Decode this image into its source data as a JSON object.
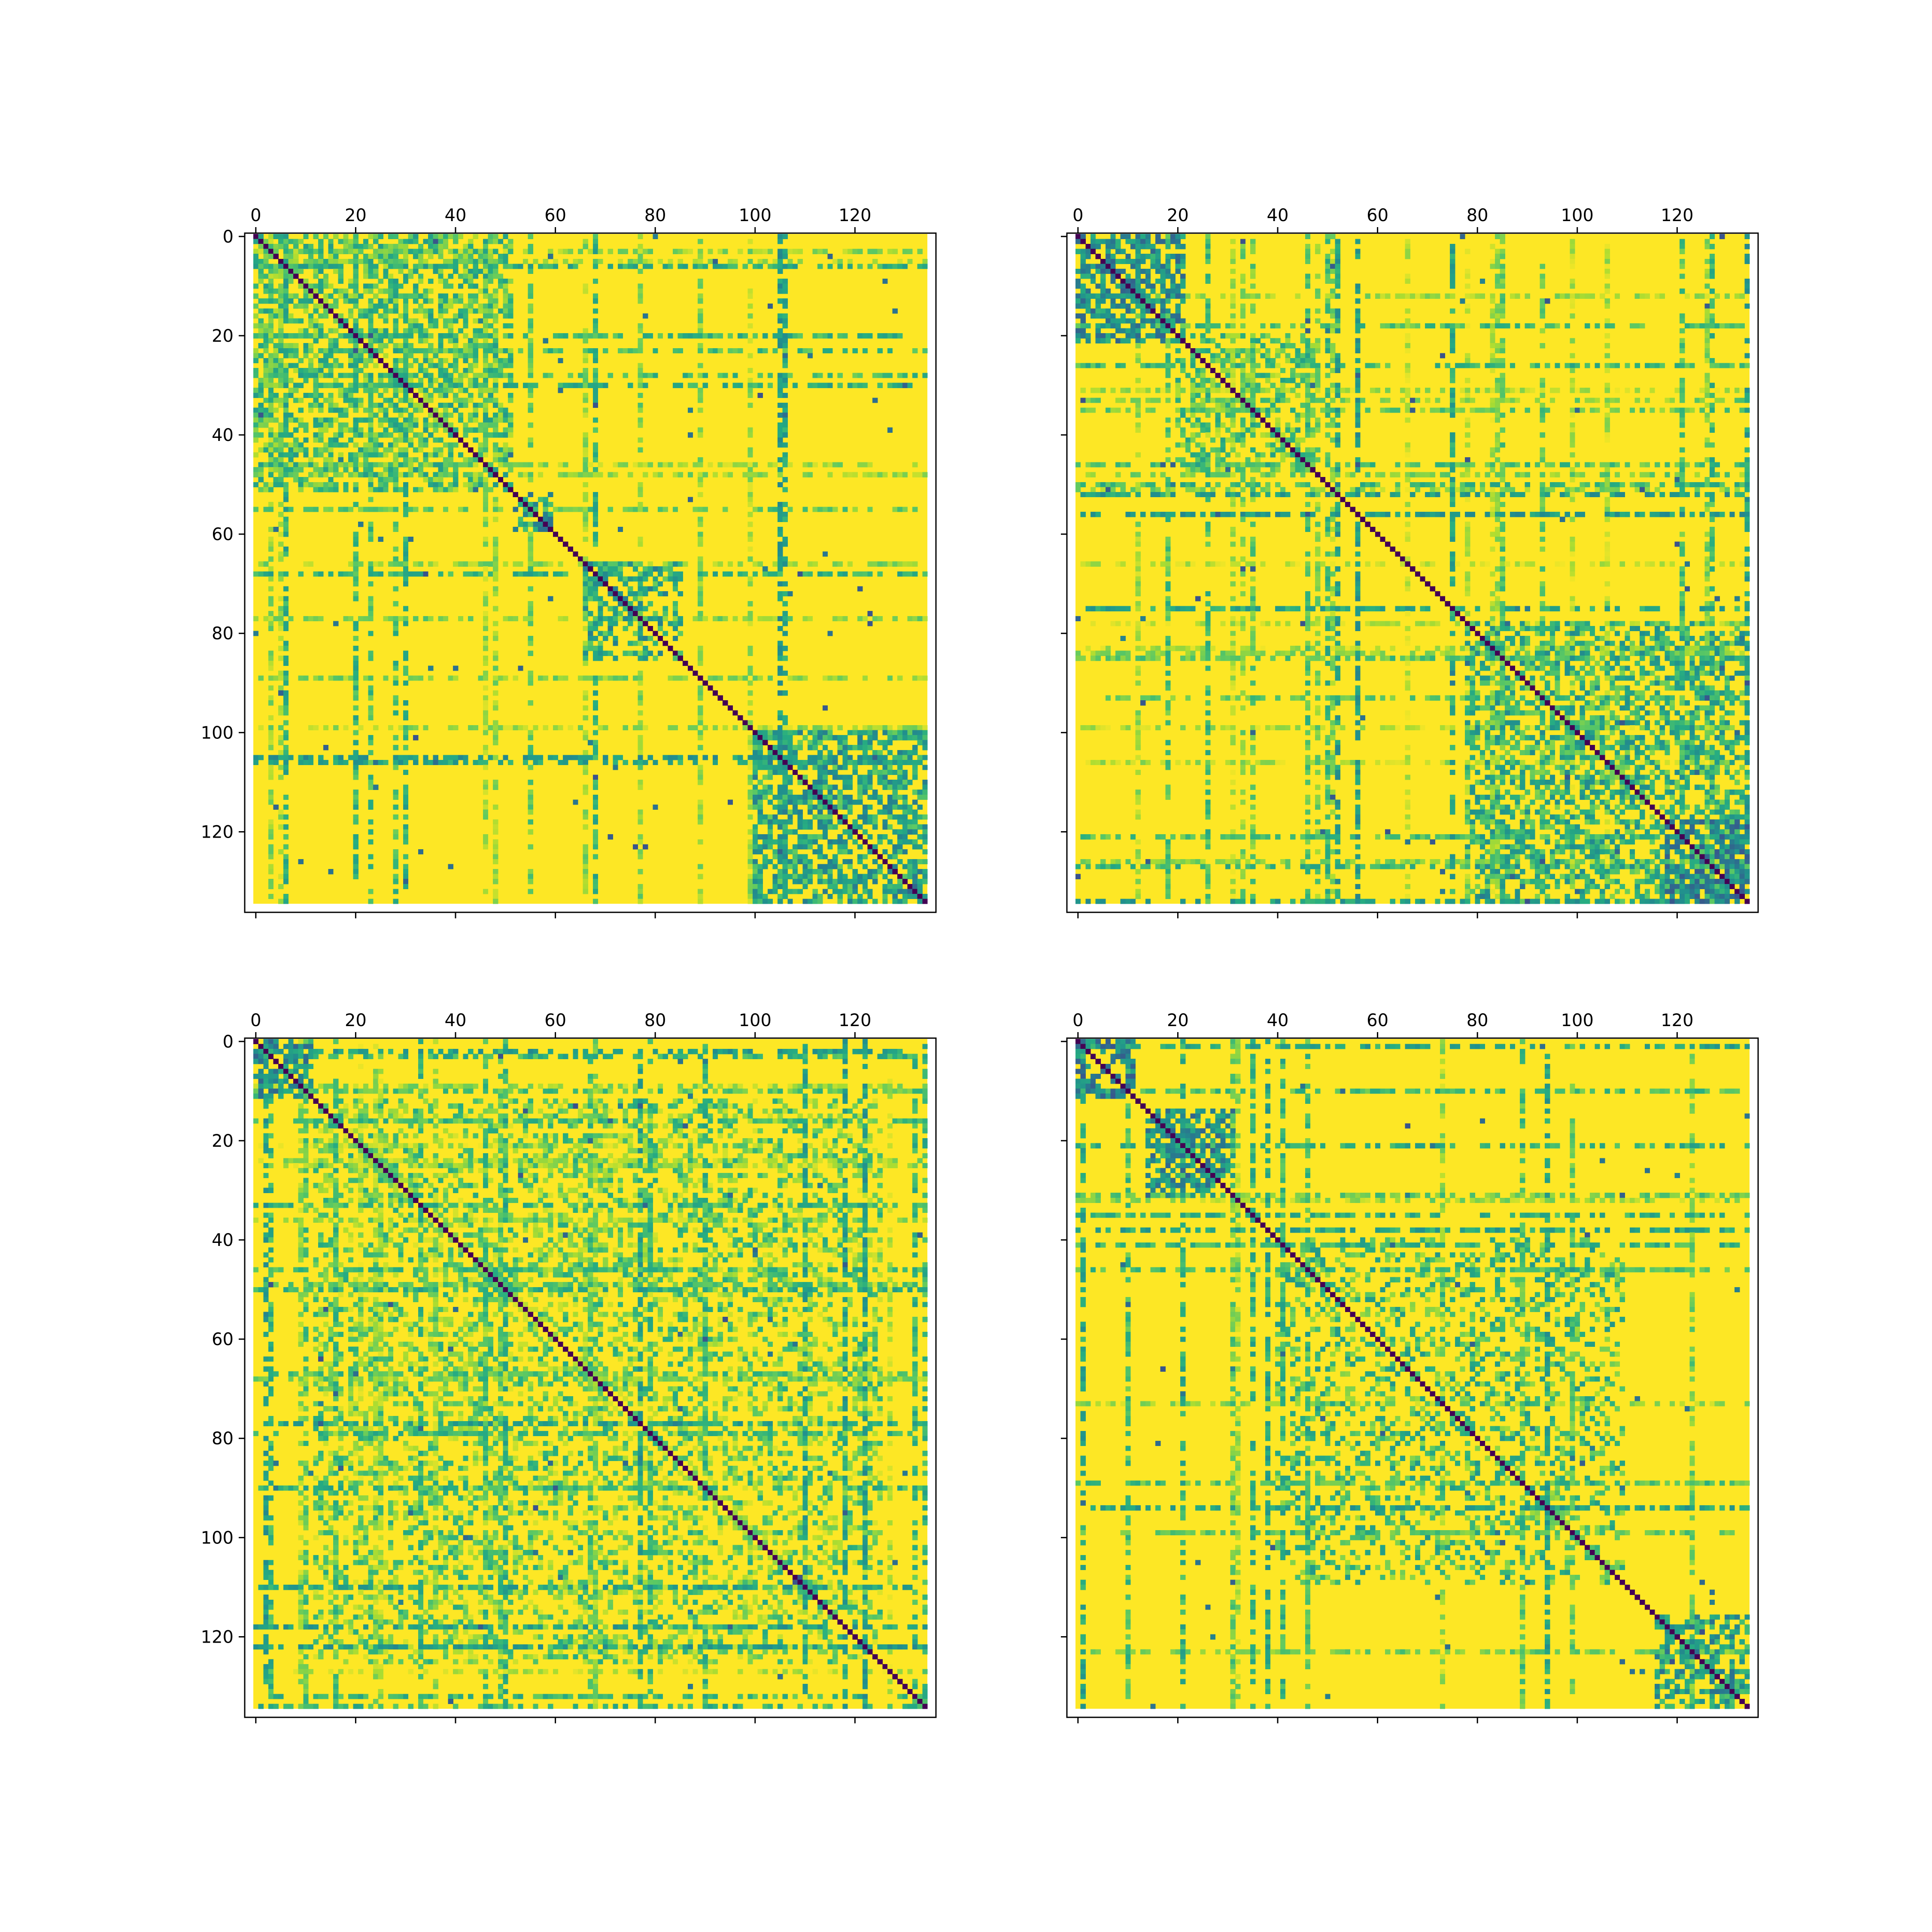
{
  "chart_data": [
    {
      "type": "heatmap",
      "panel": "top-left",
      "size": 135,
      "colormap": "viridis",
      "x_ticks": [
        0,
        20,
        40,
        60,
        80,
        100,
        120
      ],
      "y_ticks": [
        0,
        20,
        40,
        60,
        80,
        100,
        120
      ],
      "x_tick_labels": [
        "0",
        "20",
        "40",
        "60",
        "80",
        "100",
        "120"
      ],
      "y_tick_labels": [
        "0",
        "20",
        "40",
        "60",
        "80",
        "100",
        "120"
      ],
      "diagonal_value": 0.0,
      "background_value": 1.0,
      "blocks": [
        {
          "start": 0,
          "end": 52,
          "value": 0.72,
          "density": 0.55
        },
        {
          "start": 52,
          "end": 60,
          "value": 0.55,
          "density": 0.5
        },
        {
          "start": 66,
          "end": 86,
          "value": 0.6,
          "density": 0.45
        },
        {
          "start": 100,
          "end": 135,
          "value": 0.6,
          "density": 0.6
        }
      ],
      "stripe_density": 0.12,
      "seed": 11
    },
    {
      "type": "heatmap",
      "panel": "top-right",
      "size": 135,
      "colormap": "viridis",
      "x_ticks": [
        0,
        20,
        40,
        60,
        80,
        100,
        120
      ],
      "y_ticks": [
        0,
        20,
        40,
        60,
        80,
        100,
        120
      ],
      "x_tick_labels": [
        "0",
        "20",
        "40",
        "60",
        "80",
        "100",
        "120"
      ],
      "y_tick_labels": [],
      "diagonal_value": 0.0,
      "background_value": 1.0,
      "blocks": [
        {
          "start": 0,
          "end": 22,
          "value": 0.5,
          "density": 0.65
        },
        {
          "start": 20,
          "end": 48,
          "value": 0.75,
          "density": 0.45
        },
        {
          "start": 78,
          "end": 135,
          "value": 0.65,
          "density": 0.5
        },
        {
          "start": 118,
          "end": 135,
          "value": 0.45,
          "density": 0.6
        }
      ],
      "stripe_density": 0.14,
      "seed": 23
    },
    {
      "type": "heatmap",
      "panel": "bottom-left",
      "size": 135,
      "colormap": "viridis",
      "x_ticks": [
        0,
        20,
        40,
        60,
        80,
        100,
        120
      ],
      "y_ticks": [
        0,
        20,
        40,
        60,
        80,
        100,
        120
      ],
      "x_tick_labels": [
        "0",
        "20",
        "40",
        "60",
        "80",
        "100",
        "120"
      ],
      "y_tick_labels": [
        "0",
        "20",
        "40",
        "60",
        "80",
        "100",
        "120"
      ],
      "diagonal_value": 0.0,
      "background_value": 1.0,
      "blocks": [
        {
          "start": 0,
          "end": 12,
          "value": 0.5,
          "density": 0.6
        },
        {
          "start": 12,
          "end": 126,
          "value": 0.78,
          "density": 0.35
        }
      ],
      "stripe_density": 0.16,
      "seed": 37
    },
    {
      "type": "heatmap",
      "panel": "bottom-right",
      "size": 135,
      "colormap": "viridis",
      "x_ticks": [
        0,
        20,
        40,
        60,
        80,
        100,
        120
      ],
      "y_ticks": [
        0,
        20,
        40,
        60,
        80,
        100,
        120
      ],
      "x_tick_labels": [
        "0",
        "20",
        "40",
        "60",
        "80",
        "100",
        "120"
      ],
      "y_tick_labels": [],
      "diagonal_value": 0.0,
      "background_value": 1.0,
      "blocks": [
        {
          "start": 0,
          "end": 12,
          "value": 0.45,
          "density": 0.55
        },
        {
          "start": 14,
          "end": 32,
          "value": 0.5,
          "density": 0.55
        },
        {
          "start": 40,
          "end": 110,
          "value": 0.7,
          "density": 0.3
        },
        {
          "start": 116,
          "end": 135,
          "value": 0.55,
          "density": 0.55
        }
      ],
      "stripe_density": 0.1,
      "seed": 53
    }
  ]
}
